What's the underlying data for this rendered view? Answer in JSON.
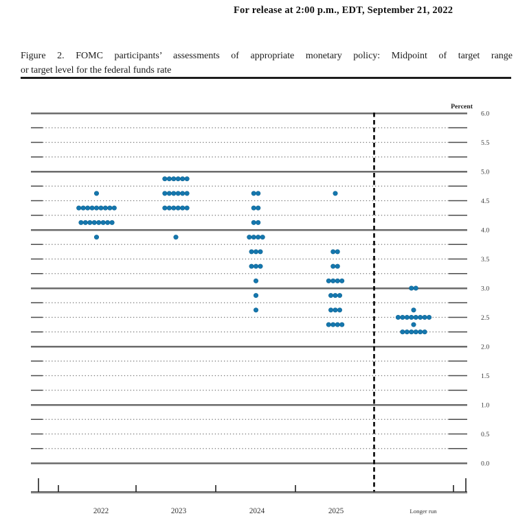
{
  "header": {
    "release_line": "For release at 2:00 p.m., EDT, September 21, 2022"
  },
  "figure": {
    "title_line1": "Figure 2. FOMC participants’ assessments of appropriate monetary policy: Midpoint of target range",
    "title_line2": "or target level for the federal funds rate"
  },
  "chart_data": {
    "type": "scatter",
    "subtype": "fomc-dot-plot",
    "title": "FOMC participants’ assessments of appropriate monetary policy: Midpoint of target range or target level for the federal funds rate",
    "unit_label": "Percent",
    "categories": [
      "2022",
      "2023",
      "2024",
      "2025",
      "Longer run"
    ],
    "ylim": [
      0.0,
      6.0
    ],
    "grid_step": 0.25,
    "label_step": 0.5,
    "ytick_labels": [
      "6.0",
      "5.5",
      "5.0",
      "4.5",
      "4.0",
      "3.5",
      "3.0",
      "2.5",
      "2.0",
      "1.5",
      "1.0",
      "0.5",
      "0.0"
    ],
    "dot_color": "#1577ae",
    "dot_edge_color": "#0c618f",
    "grid_major_color": "#3c3c3c",
    "grid_minor_color": "#737373",
    "series": [
      {
        "name": "2022",
        "dots": [
          {
            "rate": 4.625,
            "count": 1
          },
          {
            "rate": 4.375,
            "count": 9
          },
          {
            "rate": 4.125,
            "count": 8
          },
          {
            "rate": 3.875,
            "count": 1
          }
        ]
      },
      {
        "name": "2023",
        "dots": [
          {
            "rate": 4.875,
            "count": 6
          },
          {
            "rate": 4.625,
            "count": 6
          },
          {
            "rate": 4.375,
            "count": 6
          },
          {
            "rate": 3.875,
            "count": 1
          }
        ]
      },
      {
        "name": "2024",
        "dots": [
          {
            "rate": 4.625,
            "count": 2
          },
          {
            "rate": 4.375,
            "count": 2
          },
          {
            "rate": 4.125,
            "count": 2
          },
          {
            "rate": 3.875,
            "count": 4
          },
          {
            "rate": 3.625,
            "count": 3
          },
          {
            "rate": 3.375,
            "count": 3
          },
          {
            "rate": 3.125,
            "count": 1
          },
          {
            "rate": 2.875,
            "count": 1
          },
          {
            "rate": 2.625,
            "count": 1
          }
        ]
      },
      {
        "name": "2025",
        "dots": [
          {
            "rate": 4.625,
            "count": 1
          },
          {
            "rate": 3.625,
            "count": 2
          },
          {
            "rate": 3.375,
            "count": 2
          },
          {
            "rate": 3.125,
            "count": 4
          },
          {
            "rate": 2.875,
            "count": 3
          },
          {
            "rate": 2.625,
            "count": 3
          },
          {
            "rate": 2.375,
            "count": 4
          }
        ]
      },
      {
        "name": "Longer run",
        "dots": [
          {
            "rate": 3.0,
            "count": 2
          },
          {
            "rate": 2.625,
            "count": 1
          },
          {
            "rate": 2.5,
            "count": 8
          },
          {
            "rate": 2.375,
            "count": 1
          },
          {
            "rate": 2.25,
            "count": 6
          }
        ]
      }
    ]
  }
}
